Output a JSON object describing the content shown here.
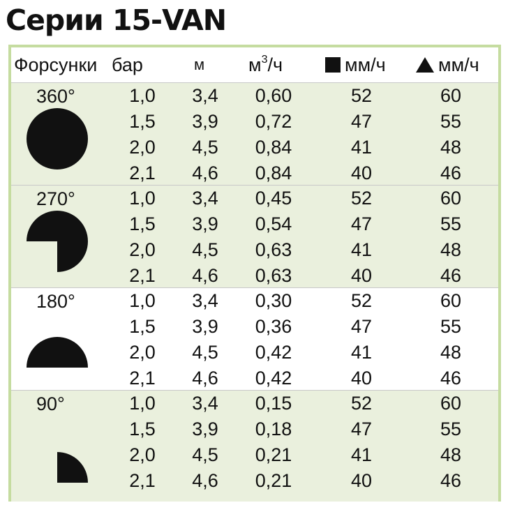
{
  "title": "Серии 15-VAN",
  "header": {
    "nozzles": "Форсунки",
    "bar": "бар",
    "m": "м",
    "flow_base": "м",
    "flow_sup": "3",
    "flow_rest": "/ч",
    "square_label": "мм/ч",
    "triangle_label": "мм/ч"
  },
  "groups": [
    {
      "angle": "360°",
      "shape": "full-circle",
      "rows": [
        {
          "bar": "1,0",
          "m": "3,4",
          "flow": "0,60",
          "square": "52",
          "triangle": "60"
        },
        {
          "bar": "1,5",
          "m": "3,9",
          "flow": "0,72",
          "square": "47",
          "triangle": "55"
        },
        {
          "bar": "2,0",
          "m": "4,5",
          "flow": "0,84",
          "square": "41",
          "triangle": "48"
        },
        {
          "bar": "2,1",
          "m": "4,6",
          "flow": "0,84",
          "square": "40",
          "triangle": "46"
        }
      ]
    },
    {
      "angle": "270°",
      "shape": "three-quarter-circle",
      "rows": [
        {
          "bar": "1,0",
          "m": "3,4",
          "flow": "0,45",
          "square": "52",
          "triangle": "60"
        },
        {
          "bar": "1,5",
          "m": "3,9",
          "flow": "0,54",
          "square": "47",
          "triangle": "55"
        },
        {
          "bar": "2,0",
          "m": "4,5",
          "flow": "0,63",
          "square": "41",
          "triangle": "48"
        },
        {
          "bar": "2,1",
          "m": "4,6",
          "flow": "0,63",
          "square": "40",
          "triangle": "46"
        }
      ]
    },
    {
      "angle": "180°",
      "shape": "half-circle",
      "rows": [
        {
          "bar": "1,0",
          "m": "3,4",
          "flow": "0,30",
          "square": "52",
          "triangle": "60"
        },
        {
          "bar": "1,5",
          "m": "3,9",
          "flow": "0,36",
          "square": "47",
          "triangle": "55"
        },
        {
          "bar": "2,0",
          "m": "4,5",
          "flow": "0,42",
          "square": "41",
          "triangle": "48"
        },
        {
          "bar": "2,1",
          "m": "4,6",
          "flow": "0,42",
          "square": "40",
          "triangle": "46"
        }
      ]
    },
    {
      "angle": "90°",
      "shape": "quarter-circle",
      "rows": [
        {
          "bar": "1,0",
          "m": "3,4",
          "flow": "0,15",
          "square": "52",
          "triangle": "60"
        },
        {
          "bar": "1,5",
          "m": "3,9",
          "flow": "0,18",
          "square": "47",
          "triangle": "55"
        },
        {
          "bar": "2,0",
          "m": "4,5",
          "flow": "0,21",
          "square": "41",
          "triangle": "48"
        },
        {
          "bar": "2,1",
          "m": "4,6",
          "flow": "0,21",
          "square": "40",
          "triangle": "46"
        }
      ]
    }
  ],
  "colors": {
    "border": "#c5dca0",
    "shaded": "#eaf0dd",
    "ink": "#111111"
  },
  "icons": {
    "square": "square-icon",
    "triangle": "triangle-icon"
  }
}
